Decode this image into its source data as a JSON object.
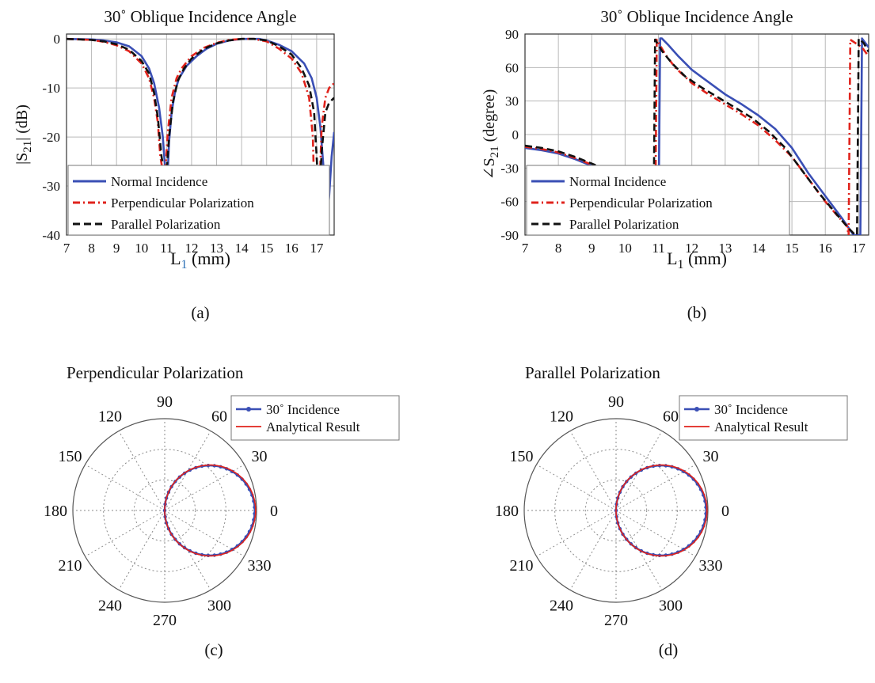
{
  "chart_data": [
    {
      "panel": "(a)",
      "type": "line",
      "title": "30˚ Oblique Incidence Angle",
      "ylabel": "|S21| (dB)",
      "ylabel_main": "|S",
      "ylabel_sub": "21",
      "ylabel_rest": "| (dB)",
      "xlabel_main": "L",
      "xlabel_sub": "1",
      "xlabel_rest": " (mm)",
      "xlim": [
        7,
        17.7
      ],
      "ylim": [
        -40,
        1
      ],
      "xticks": [
        7,
        8,
        9,
        10,
        11,
        12,
        13,
        14,
        15,
        16,
        17
      ],
      "yticks": [
        0,
        -10,
        -20,
        -30,
        -40
      ],
      "grid": true,
      "legend_position": "lower-left",
      "series": [
        {
          "name": "Normal Incidence",
          "color": "#3a4fb5",
          "dash": "solid",
          "x": [
            7,
            8,
            8.5,
            9,
            9.5,
            10,
            10.3,
            10.5,
            10.7,
            10.85,
            10.95,
            11.05,
            11.1,
            11.2,
            11.35,
            11.5,
            11.8,
            12.2,
            12.6,
            13,
            13.5,
            14,
            14.3,
            14.7,
            15,
            15.5,
            16,
            16.5,
            16.8,
            17.0,
            17.15,
            17.3,
            17.4,
            17.5,
            17.6,
            17.7
          ],
          "y": [
            0,
            -0.1,
            -0.3,
            -0.7,
            -1.5,
            -3.5,
            -6,
            -9,
            -14,
            -20,
            -27,
            -27,
            -21,
            -15,
            -10.5,
            -8,
            -5.5,
            -3.5,
            -2,
            -1,
            -0.3,
            0,
            0,
            0,
            -0.3,
            -1.2,
            -2.5,
            -5,
            -8,
            -12,
            -18,
            -28,
            -38,
            -32,
            -24,
            -19
          ]
        },
        {
          "name": "Perpendicular Polarization",
          "color": "#e0231c",
          "dash": "dashdot",
          "x": [
            7,
            8,
            8.5,
            9,
            9.5,
            10,
            10.3,
            10.5,
            10.65,
            10.75,
            10.85,
            10.95,
            11.05,
            11.2,
            11.4,
            11.6,
            12,
            12.5,
            13,
            13.5,
            14,
            14.5,
            15,
            15.5,
            16,
            16.4,
            16.7,
            16.85,
            16.95,
            17.05,
            17.2,
            17.35,
            17.5,
            17.7
          ],
          "y": [
            0,
            -0.2,
            -0.6,
            -1.3,
            -2.5,
            -5,
            -8,
            -12,
            -17,
            -24,
            -27,
            -27,
            -19,
            -12,
            -8,
            -6,
            -3.5,
            -1.8,
            -0.8,
            -0.2,
            0,
            0,
            -0.5,
            -2,
            -4,
            -7,
            -12,
            -20,
            -40,
            -40,
            -18,
            -12,
            -10,
            -9
          ]
        },
        {
          "name": "Parallel Polarization",
          "color": "#111111",
          "dash": "dash",
          "x": [
            7,
            8,
            8.5,
            9,
            9.5,
            10,
            10.3,
            10.5,
            10.65,
            10.8,
            10.9,
            11.0,
            11.1,
            11.25,
            11.45,
            11.7,
            12,
            12.5,
            13,
            13.5,
            14,
            14.5,
            15,
            15.5,
            16,
            16.4,
            16.7,
            16.9,
            17.0,
            17.1,
            17.2,
            17.35,
            17.5,
            17.7
          ],
          "y": [
            0,
            -0.2,
            -0.5,
            -1.1,
            -2.2,
            -4.5,
            -7,
            -11,
            -16,
            -24,
            -27,
            -27,
            -20,
            -13,
            -8.5,
            -6,
            -4,
            -2,
            -0.9,
            -0.3,
            0,
            0,
            -0.3,
            -1.5,
            -3.2,
            -6,
            -9.5,
            -15,
            -24,
            -34,
            -23,
            -15,
            -13,
            -12
          ]
        }
      ],
      "caption": "(a)"
    },
    {
      "panel": "(b)",
      "type": "line",
      "title": "30˚ Oblique Incidence Angle",
      "ylabel": "∠S21 (degree)",
      "ylabel_main": "∠S",
      "ylabel_sub": "21",
      "ylabel_rest": " (degree)",
      "xlabel_main": "L",
      "xlabel_sub": "1",
      "xlabel_rest": " (mm)",
      "xlim": [
        7,
        17.3
      ],
      "ylim": [
        -90,
        90
      ],
      "xticks": [
        7,
        8,
        9,
        10,
        11,
        12,
        13,
        14,
        15,
        16,
        17
      ],
      "yticks": [
        90,
        60,
        30,
        0,
        -30,
        -60,
        -90
      ],
      "grid": true,
      "legend_position": "lower-left",
      "series": [
        {
          "name": "Normal Incidence",
          "color": "#3a4fb5",
          "dash": "solid",
          "x": [
            7,
            7.5,
            8,
            8.5,
            9,
            9.5,
            10,
            10.5,
            10.95,
            11.0,
            11.05,
            11.1,
            11.3,
            11.6,
            12,
            12.5,
            13,
            13.5,
            14,
            14.5,
            15,
            15.5,
            16,
            16.5,
            16.85,
            17.0,
            17.05,
            17.1,
            17.2,
            17.3
          ],
          "y": [
            -12,
            -14,
            -17,
            -22,
            -28,
            -34,
            -42,
            -55,
            -72,
            -85,
            86,
            86,
            80,
            70,
            58,
            47,
            36,
            27,
            17,
            5,
            -12,
            -35,
            -55,
            -75,
            -90,
            -90,
            -90,
            86,
            82,
            78
          ]
        },
        {
          "name": "Perpendicular Polarization",
          "color": "#e0231c",
          "dash": "dashdot",
          "x": [
            7,
            7.5,
            8,
            8.5,
            9,
            9.5,
            10,
            10.5,
            10.85,
            10.9,
            10.95,
            11.2,
            11.5,
            12,
            12.5,
            13,
            13.5,
            14,
            14.5,
            15,
            15.5,
            16,
            16.4,
            16.65,
            16.7,
            16.75,
            16.9,
            17.1,
            17.3
          ],
          "y": [
            -11,
            -13,
            -16,
            -21,
            -27,
            -33,
            -41,
            -54,
            -68,
            -90,
            85,
            72,
            60,
            46,
            36,
            27,
            18,
            8,
            -5,
            -20,
            -40,
            -60,
            -74,
            -82,
            -90,
            85,
            82,
            78,
            70
          ]
        },
        {
          "name": "Parallel Polarization",
          "color": "#111111",
          "dash": "dash",
          "x": [
            7,
            7.5,
            8,
            8.5,
            9,
            9.5,
            10,
            10.5,
            10.8,
            10.85,
            10.9,
            11.1,
            11.4,
            11.8,
            12.3,
            12.8,
            13.3,
            13.8,
            14.3,
            14.8,
            15.3,
            15.8,
            16.3,
            16.7,
            16.9,
            16.95,
            17.0,
            17.15,
            17.3
          ],
          "y": [
            -10,
            -12,
            -15,
            -20,
            -26,
            -32,
            -40,
            -53,
            -66,
            -90,
            85,
            75,
            64,
            52,
            42,
            33,
            24,
            15,
            3,
            -12,
            -32,
            -52,
            -70,
            -84,
            -90,
            -90,
            86,
            82,
            74
          ]
        }
      ],
      "caption": "(b)"
    },
    {
      "panel": "(c)",
      "type": "polar",
      "title": "Perpendicular Polarization",
      "angle_labels": [
        "0",
        "30",
        "60",
        "90",
        "120",
        "150",
        "180",
        "210",
        "240",
        "270",
        "300",
        "330"
      ],
      "grid": true,
      "legend_position": "top-right",
      "series": [
        {
          "name": "30˚ Incidence",
          "color": "#3a4fb5",
          "marker": "dot",
          "form": "cos(theta)",
          "rmax_fraction": 0.98
        },
        {
          "name": "Analytical Result",
          "color": "#e0231c",
          "marker": "none",
          "form": "cos(theta)",
          "rmax_fraction": 0.99
        }
      ],
      "caption": "(c)"
    },
    {
      "panel": "(d)",
      "type": "polar",
      "title": "Parallel Polarization",
      "angle_labels": [
        "0",
        "30",
        "60",
        "90",
        "120",
        "150",
        "180",
        "210",
        "240",
        "270",
        "300",
        "330"
      ],
      "grid": true,
      "legend_position": "top-right",
      "series": [
        {
          "name": "30˚ Incidence",
          "color": "#3a4fb5",
          "marker": "dot",
          "form": "cos(theta)",
          "rmax_fraction": 0.98
        },
        {
          "name": "Analytical Result",
          "color": "#e0231c",
          "marker": "none",
          "form": "cos(theta)",
          "rmax_fraction": 0.99
        }
      ],
      "caption": "(d)"
    }
  ]
}
